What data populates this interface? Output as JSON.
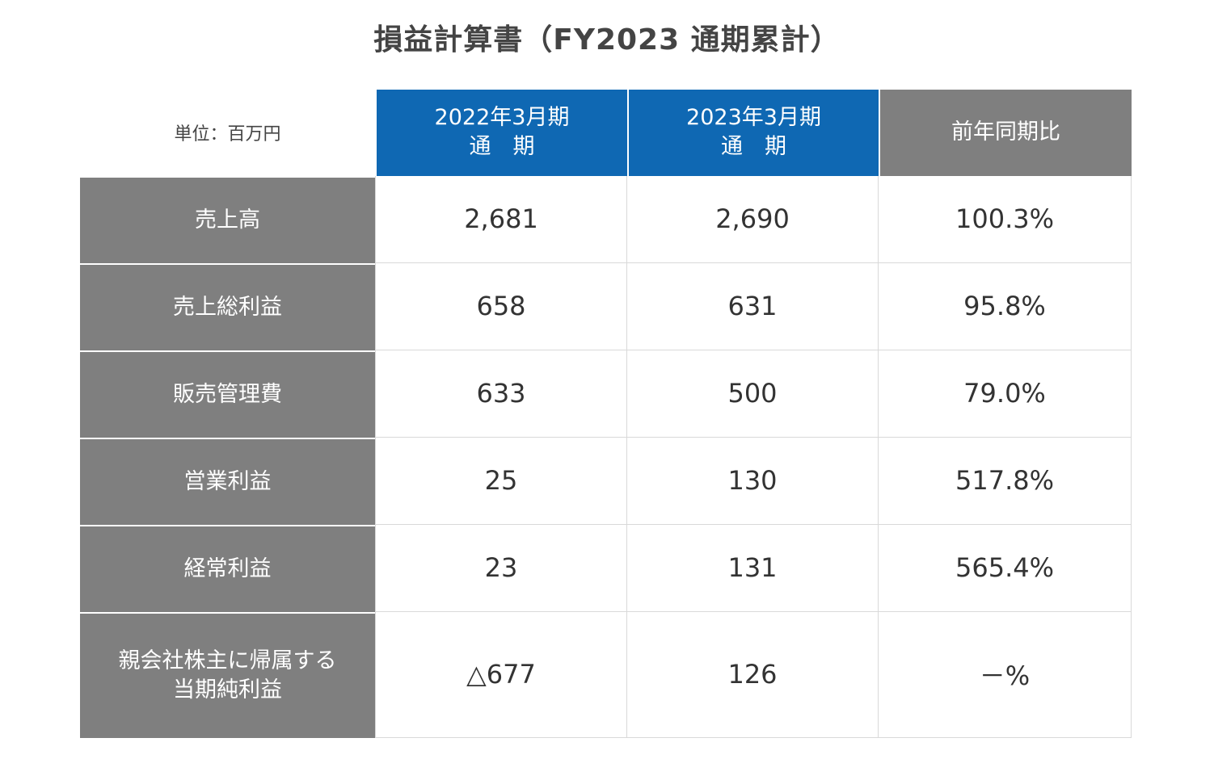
{
  "title": "損益計算書（FY2023 通期累計）",
  "table": {
    "unit_label": "単位：百万円",
    "columns": [
      {
        "line1": "2022年3月期",
        "line2": "通　期"
      },
      {
        "line1": "2023年3月期",
        "line2": "通　期"
      },
      {
        "line1": "前年同期比",
        "line2": ""
      }
    ],
    "rows": [
      {
        "label1": "売上高",
        "label2": "",
        "prev": "2,681",
        "curr": "2,690",
        "ratio": "100.3%"
      },
      {
        "label1": "売上総利益",
        "label2": "",
        "prev": "658",
        "curr": "631",
        "ratio": "95.8%"
      },
      {
        "label1": "販売管理費",
        "label2": "",
        "prev": "633",
        "curr": "500",
        "ratio": "79.0%"
      },
      {
        "label1": "営業利益",
        "label2": "",
        "prev": "25",
        "curr": "130",
        "ratio": "517.8%"
      },
      {
        "label1": "経常利益",
        "label2": "",
        "prev": "23",
        "curr": "131",
        "ratio": "565.4%"
      },
      {
        "label1": "親会社株主に帰属する",
        "label2": "当期純利益",
        "prev": "△677",
        "curr": "126",
        "ratio": "－%"
      }
    ]
  },
  "colors": {
    "header_blue": "#0f68b3",
    "header_gray": "#7f7f7f",
    "grid_line": "#d9d9d9"
  }
}
